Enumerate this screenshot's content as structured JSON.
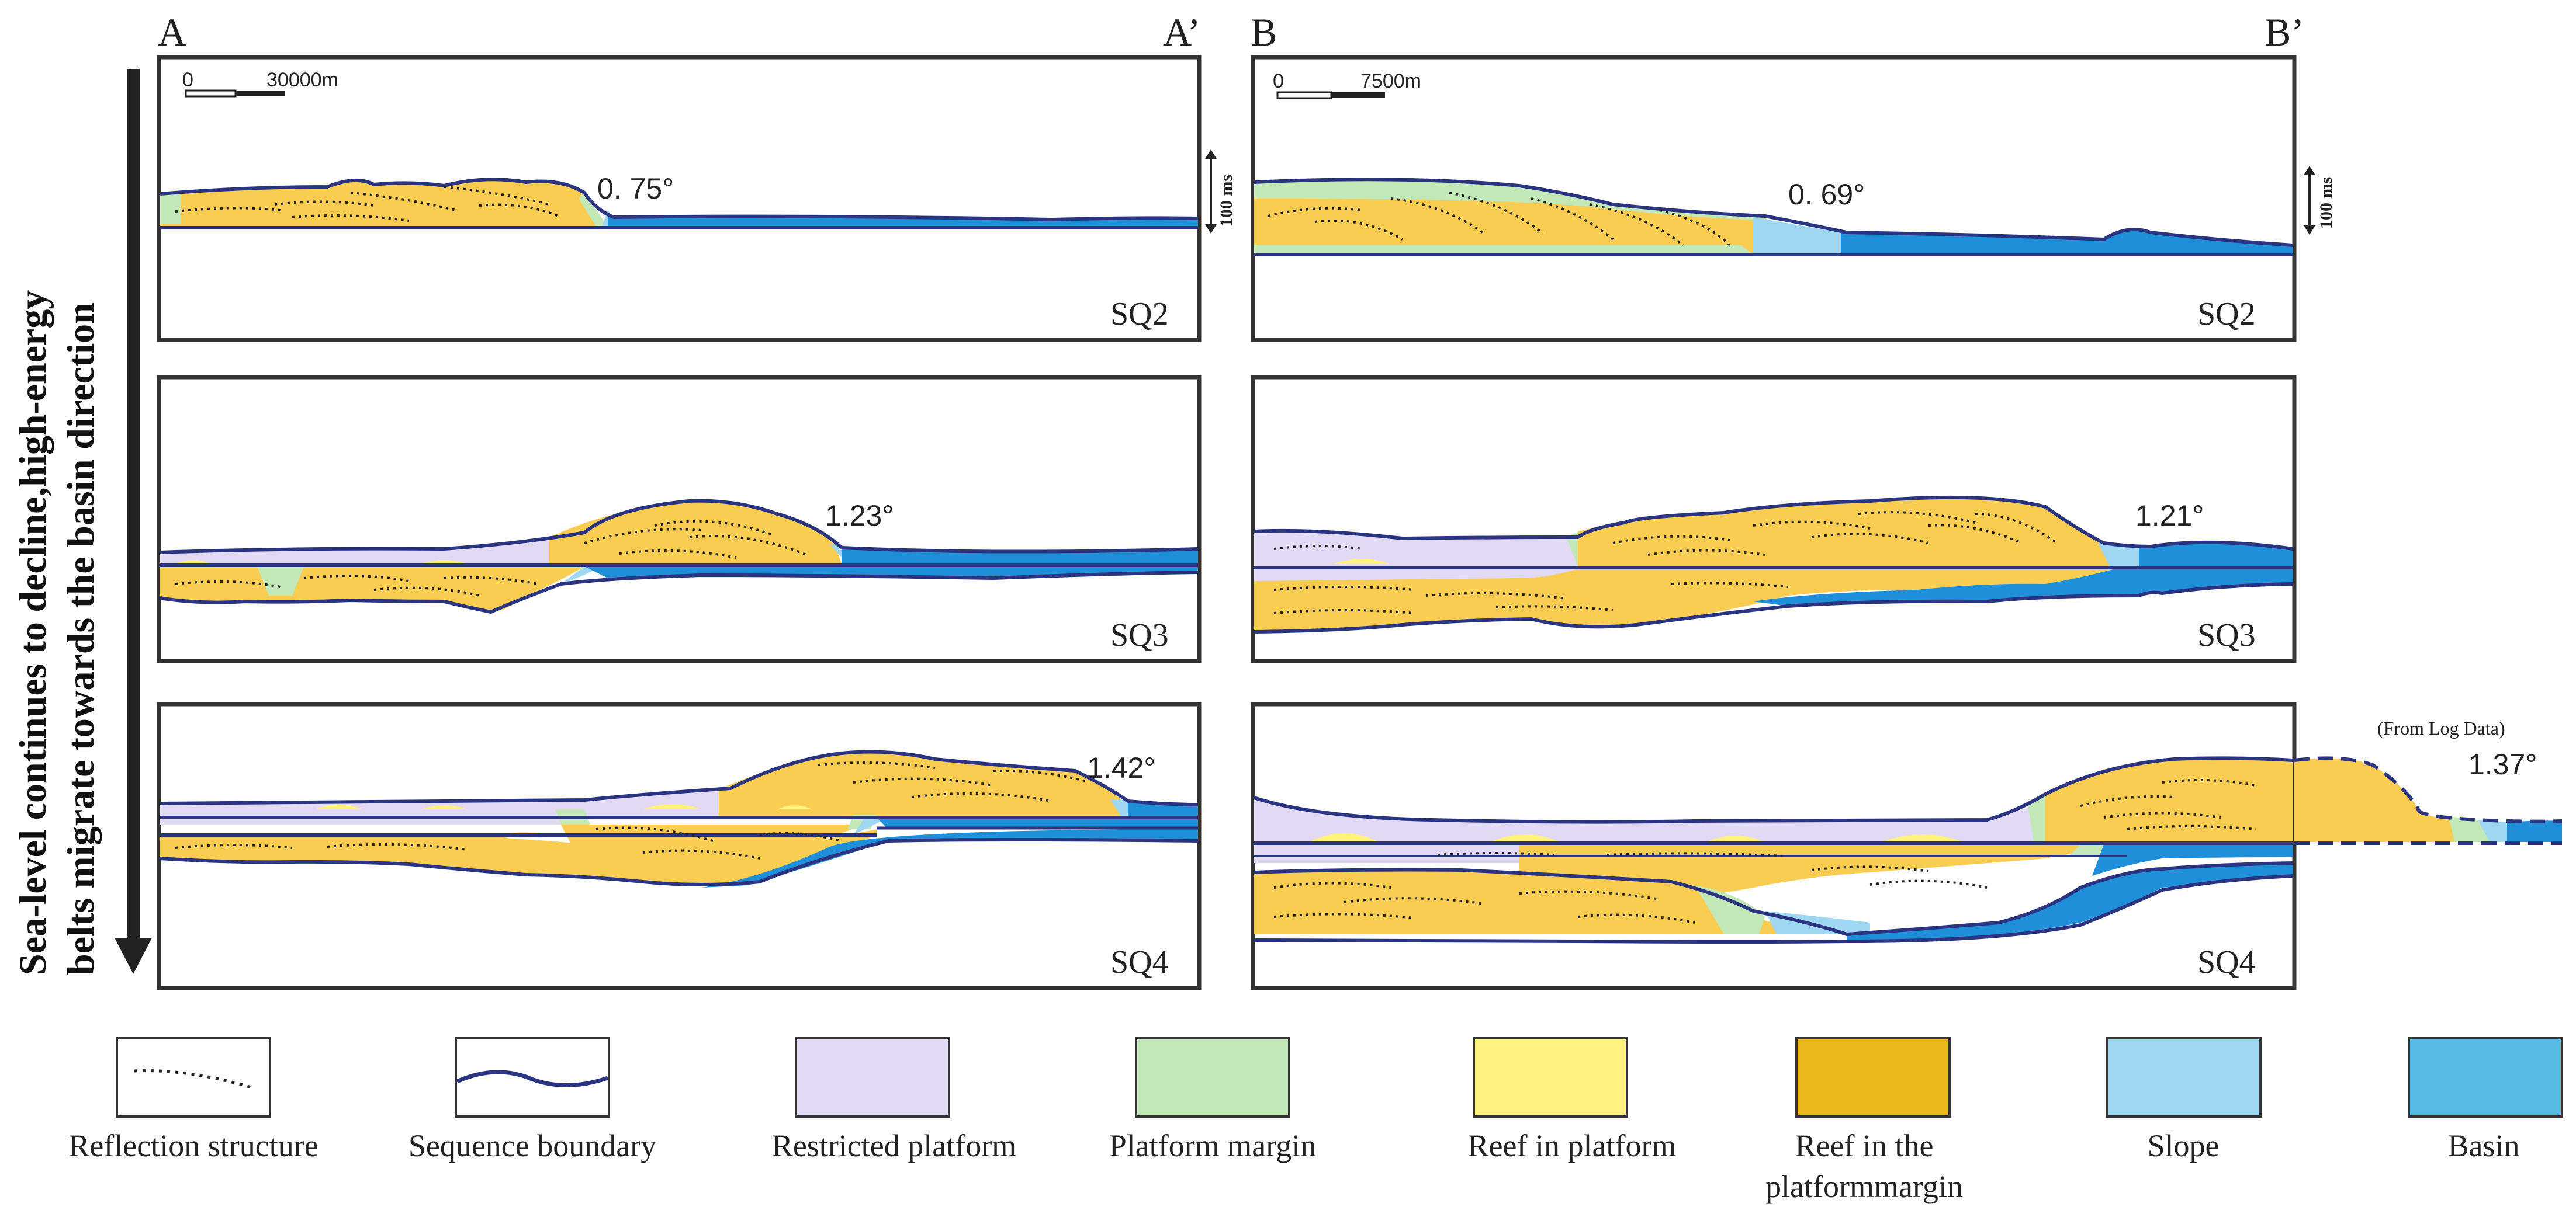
{
  "sections": {
    "left": {
      "start": "A",
      "end": "A’"
    },
    "right": {
      "start": "B",
      "end": "B’"
    }
  },
  "scale_bars": {
    "left": {
      "zero": "0",
      "label": "30000m"
    },
    "right": {
      "zero": "0",
      "label": "7500m"
    }
  },
  "time_scale": {
    "label": "100 ms"
  },
  "panels": {
    "left_sq2": {
      "sequence": "SQ2",
      "angle": "0. 75°"
    },
    "left_sq3": {
      "sequence": "SQ3",
      "angle": "1.23°"
    },
    "left_sq4": {
      "sequence": "SQ4",
      "angle": "1.42°"
    },
    "right_sq2": {
      "sequence": "SQ2",
      "angle": "0. 69°"
    },
    "right_sq3": {
      "sequence": "SQ3",
      "angle": "1.21°"
    },
    "right_sq4": {
      "sequence": "SQ4",
      "angle": "1.37°",
      "note": "(From Log Data)"
    }
  },
  "trend": {
    "line1": "Sea-level continues to decline,high-energy",
    "line2": "belts migrate towards the basin direction"
  },
  "legend": [
    {
      "key": "reflection",
      "label": "Reflection structure",
      "color": "#ffffff"
    },
    {
      "key": "boundary",
      "label": "Sequence boundary",
      "color": "#ffffff"
    },
    {
      "key": "restricted",
      "label": "Restricted platform",
      "color": "#e2daf4"
    },
    {
      "key": "margin",
      "label": "Platform margin",
      "color": "#c3e8b8"
    },
    {
      "key": "reef_platform",
      "label": "Reef in platform",
      "color": "#fff27f"
    },
    {
      "key": "reef_margin",
      "label": "Reef in the",
      "label2": "platformmargin",
      "color": "#ecb91c"
    },
    {
      "key": "slope",
      "label": "Slope",
      "color": "#9fd6f2"
    },
    {
      "key": "basin",
      "label": "Basin",
      "color": "#56bce6"
    }
  ],
  "colors": {
    "frame": "#333333",
    "boundary_line": "#2a3480",
    "reef_fill": "#f9cd52",
    "restricted": "#e2daf4",
    "margin": "#c3e8b8",
    "reef_platform": "#fff27f",
    "slope": "#9fd6f2",
    "basin": "#1e8fd8",
    "arrow": "#222222"
  }
}
